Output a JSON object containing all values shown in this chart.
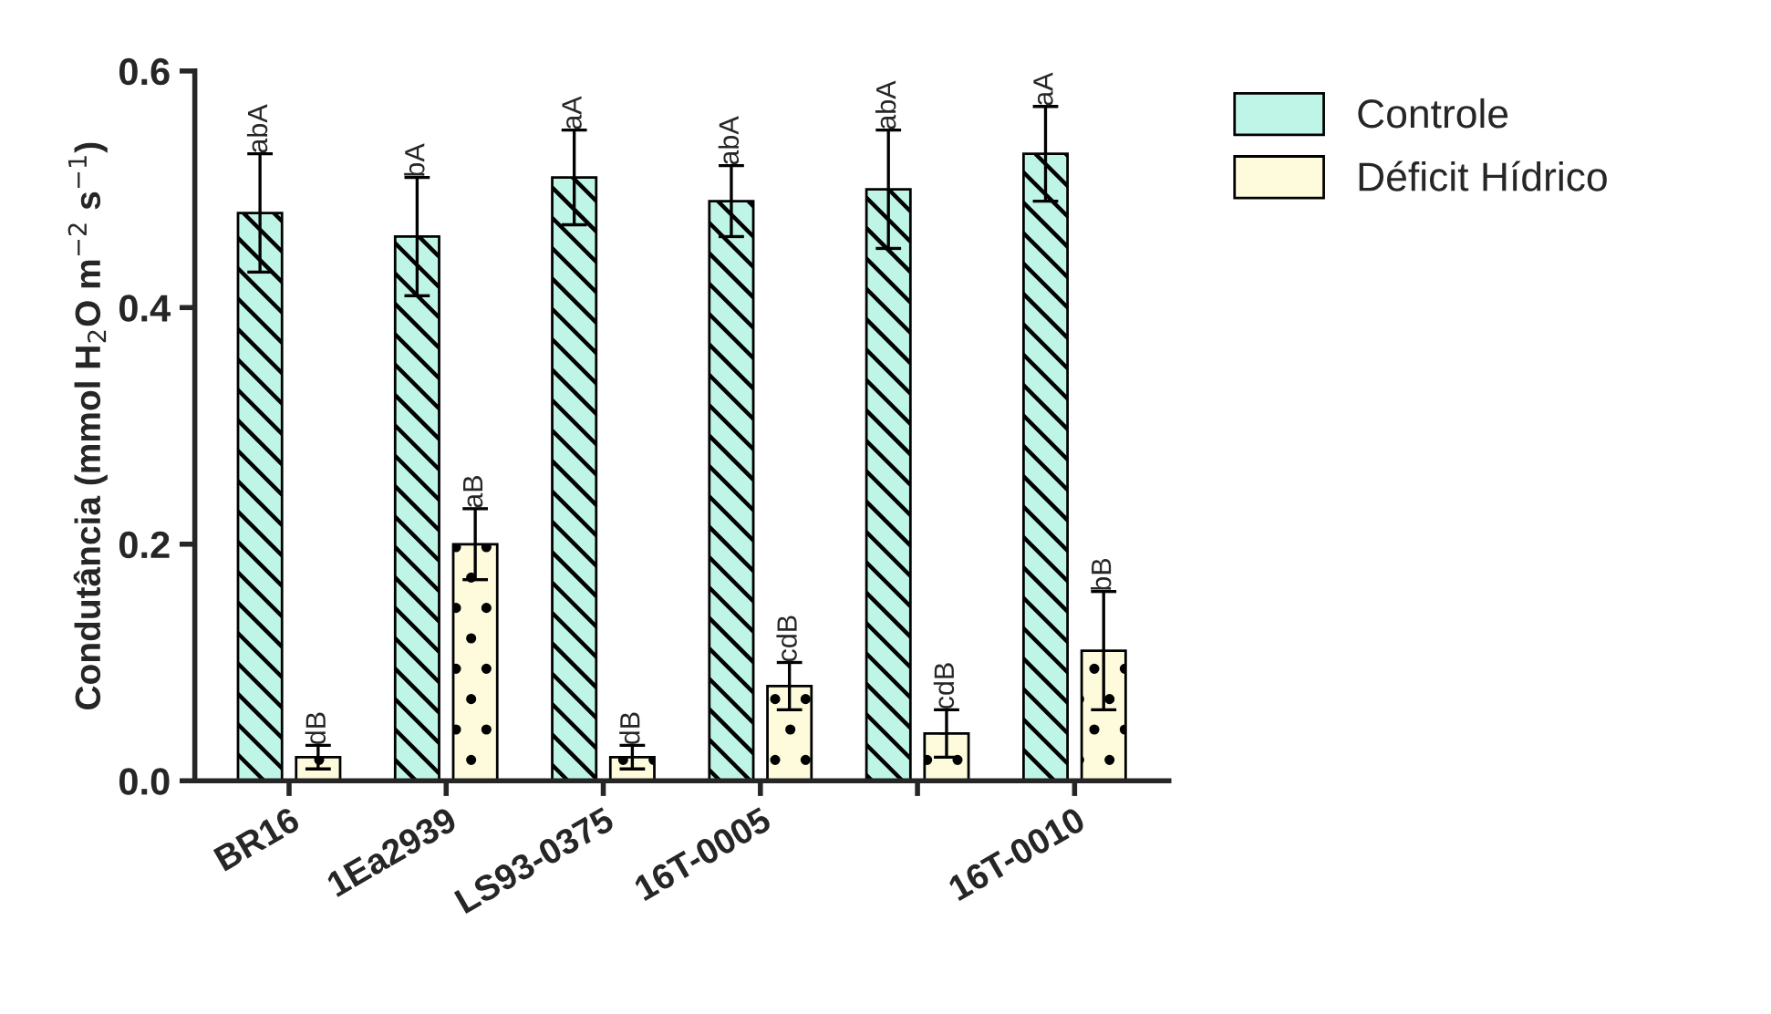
{
  "chart_data": {
    "type": "bar",
    "ylabel": "Condutância (mmol H$_{2}$O m$^{−2}$ s$^{−1}$)",
    "categories": [
      "BR16",
      "1Ea2939",
      "LS93-0375",
      "16T-0005",
      null,
      "16T-0010"
    ],
    "series": [
      {
        "name": "Controle",
        "color": "#bff5e6",
        "values": [
          0.48,
          0.46,
          0.51,
          0.49,
          0.5,
          0.53
        ],
        "errors": [
          0.05,
          0.05,
          0.04,
          0.03,
          0.05,
          0.04
        ],
        "value_labels": [
          "abA",
          "bA",
          "aA",
          "abA",
          "abA",
          "aA"
        ]
      },
      {
        "name": "Déficit Hídrico",
        "color": "#fdfbdc",
        "values": [
          0.02,
          0.2,
          0.02,
          0.08,
          0.04,
          0.11
        ],
        "errors": [
          0.01,
          0.03,
          0.01,
          0.02,
          0.02,
          0.05
        ],
        "value_labels": [
          "dB",
          "aB",
          "dB",
          "cdB",
          "cdB",
          "bB"
        ]
      }
    ],
    "ylim": [
      0,
      0.6
    ],
    "yticks": [
      {
        "value": 0,
        "label": "0.0"
      },
      {
        "value": 0.2,
        "label": "0.2"
      },
      {
        "value": 0.4,
        "label": "0.4"
      },
      {
        "value": 0.6,
        "label": "0.6"
      }
    ],
    "grid": false,
    "legend": "top right"
  }
}
